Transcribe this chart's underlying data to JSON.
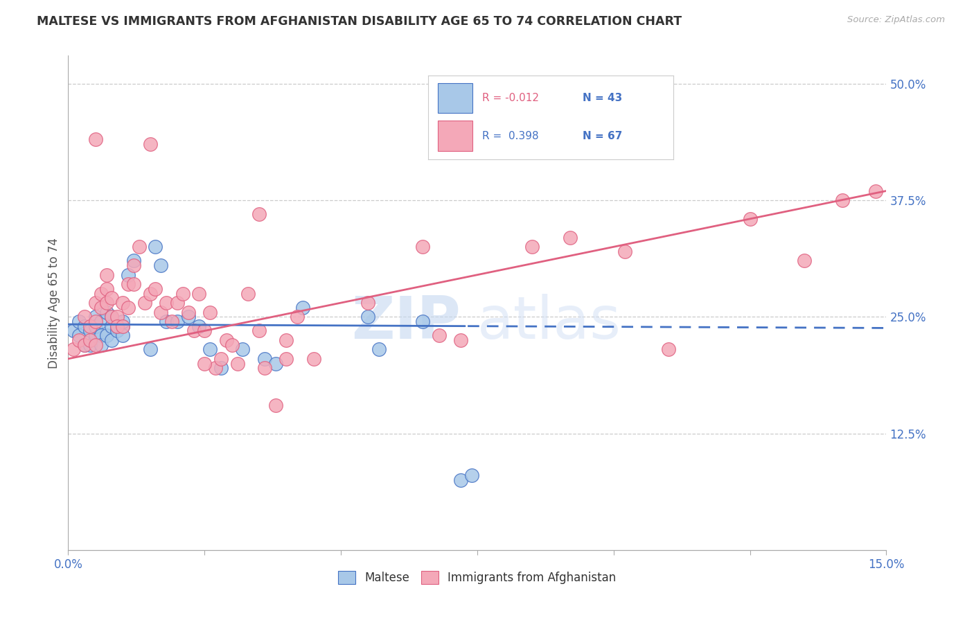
{
  "title": "MALTESE VS IMMIGRANTS FROM AFGHANISTAN DISABILITY AGE 65 TO 74 CORRELATION CHART",
  "source": "Source: ZipAtlas.com",
  "ylabel": "Disability Age 65 to 74",
  "legend_label1": "Maltese",
  "legend_label2": "Immigrants from Afghanistan",
  "r1": "-0.012",
  "n1": "43",
  "r2": "0.398",
  "n2": "67",
  "xmin": 0.0,
  "xmax": 15.0,
  "ymin": 0.0,
  "ymax": 53.0,
  "yticks": [
    12.5,
    25.0,
    37.5,
    50.0
  ],
  "color_blue": "#a8c8e8",
  "color_pink": "#f4a8b8",
  "line_blue": "#4472c4",
  "line_pink": "#e06080",
  "watermark_text": "ZIP",
  "watermark_text2": "atlas",
  "blue_x": [
    0.1,
    0.2,
    0.2,
    0.3,
    0.3,
    0.4,
    0.4,
    0.5,
    0.5,
    0.5,
    0.6,
    0.6,
    0.6,
    0.7,
    0.7,
    0.8,
    0.8,
    0.8,
    0.9,
    0.9,
    1.0,
    1.0,
    1.0,
    1.1,
    1.2,
    1.5,
    1.6,
    1.7,
    1.8,
    2.0,
    2.2,
    2.4,
    2.6,
    2.8,
    3.2,
    3.6,
    3.8,
    4.3,
    5.5,
    5.7,
    6.5,
    7.2,
    7.4
  ],
  "blue_y": [
    23.5,
    23.0,
    24.5,
    22.0,
    24.0,
    23.5,
    22.0,
    23.0,
    25.0,
    24.0,
    23.0,
    22.0,
    24.5,
    25.5,
    23.0,
    25.0,
    24.0,
    22.5,
    23.5,
    24.0,
    24.0,
    23.0,
    24.5,
    29.5,
    31.0,
    21.5,
    32.5,
    30.5,
    24.5,
    24.5,
    25.0,
    24.0,
    21.5,
    19.5,
    21.5,
    20.5,
    20.0,
    26.0,
    25.0,
    21.5,
    24.5,
    7.5,
    8.0
  ],
  "pink_x": [
    0.1,
    0.2,
    0.3,
    0.3,
    0.4,
    0.4,
    0.5,
    0.5,
    0.5,
    0.6,
    0.6,
    0.7,
    0.7,
    0.7,
    0.8,
    0.8,
    0.9,
    0.9,
    1.0,
    1.0,
    1.1,
    1.1,
    1.2,
    1.2,
    1.3,
    1.4,
    1.5,
    1.6,
    1.7,
    1.8,
    1.9,
    2.0,
    2.1,
    2.2,
    2.3,
    2.4,
    2.5,
    2.6,
    2.7,
    2.8,
    2.9,
    3.0,
    3.1,
    3.3,
    3.5,
    3.6,
    3.8,
    4.0,
    4.2,
    4.5,
    5.5,
    6.5,
    6.8,
    7.2,
    8.5,
    9.2,
    10.2,
    11.0,
    12.5,
    13.5,
    14.2,
    14.8,
    4.0,
    3.5,
    2.5,
    1.5,
    0.5
  ],
  "pink_y": [
    21.5,
    22.5,
    22.0,
    25.0,
    24.0,
    22.5,
    26.5,
    24.5,
    22.0,
    27.5,
    26.0,
    28.0,
    26.5,
    29.5,
    27.0,
    25.0,
    25.0,
    24.0,
    26.5,
    24.0,
    28.5,
    26.0,
    30.5,
    28.5,
    32.5,
    26.5,
    27.5,
    28.0,
    25.5,
    26.5,
    24.5,
    26.5,
    27.5,
    25.5,
    23.5,
    27.5,
    23.5,
    25.5,
    19.5,
    20.5,
    22.5,
    22.0,
    20.0,
    27.5,
    23.5,
    19.5,
    15.5,
    22.5,
    25.0,
    20.5,
    26.5,
    32.5,
    23.0,
    22.5,
    32.5,
    33.5,
    32.0,
    21.5,
    35.5,
    31.0,
    37.5,
    38.5,
    20.5,
    36.0,
    20.0,
    43.5,
    44.0
  ],
  "blue_reg_x0": 0.0,
  "blue_reg_y0": 24.2,
  "blue_reg_x1": 15.0,
  "blue_reg_y1": 23.8,
  "pink_reg_x0": 0.0,
  "pink_reg_y0": 20.5,
  "pink_reg_x1": 15.0,
  "pink_reg_y1": 38.5
}
